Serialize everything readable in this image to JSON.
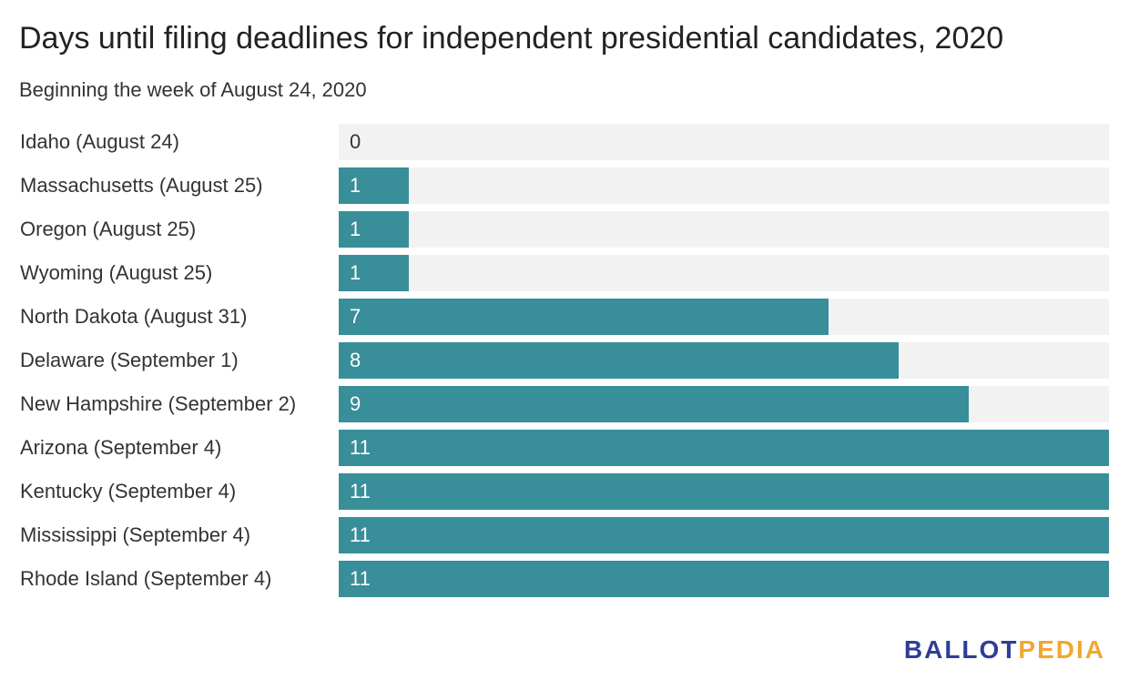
{
  "colors": {
    "bar": "#388e99",
    "track": "#f2f2f2",
    "label_on_bar": "#ffffff",
    "label_off_bar": "#333333",
    "logo_primary": "#2d3e97",
    "logo_accent": "#f0a830"
  },
  "logo": {
    "part1": "BALLOT",
    "part2": "PEDIA"
  },
  "chart_data": {
    "type": "bar",
    "orientation": "horizontal",
    "title": "Days until filing deadlines for independent presidential candidates, 2020",
    "subtitle": "Beginning the week of August 24, 2020",
    "xlim": [
      0,
      11
    ],
    "grid": false,
    "categories": [
      "Idaho (August 24)",
      "Massachusetts (August 25)",
      "Oregon (August 25)",
      "Wyoming (August 25)",
      "North Dakota (August 31)",
      "Delaware (September 1)",
      "New Hampshire (September 2)",
      "Arizona (September 4)",
      "Kentucky (September 4)",
      "Mississippi (September 4)",
      "Rhode Island (September 4)"
    ],
    "values": [
      0,
      1,
      1,
      1,
      7,
      8,
      9,
      11,
      11,
      11,
      11
    ],
    "value_labels": [
      "0",
      "1",
      "1",
      "1",
      "7",
      "8",
      "9",
      "11",
      "11",
      "11",
      "11"
    ]
  }
}
